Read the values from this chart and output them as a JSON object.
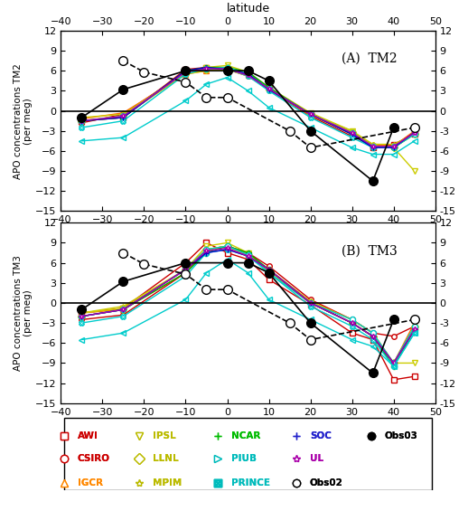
{
  "latitudes": [
    -35,
    -25,
    -20,
    -10,
    -5,
    0,
    5,
    10,
    20,
    25,
    30,
    35,
    40,
    45
  ],
  "xlim": [
    -40,
    50
  ],
  "ylim": [
    -15,
    12
  ],
  "yticks": [
    -15,
    -12,
    -9,
    -6,
    -3,
    0,
    3,
    6,
    9,
    12
  ],
  "xticks": [
    -40,
    -30,
    -20,
    -10,
    0,
    10,
    20,
    30,
    40,
    50
  ],
  "obs02": {
    "lat": [
      -25,
      -20,
      -10,
      -5,
      0,
      15,
      20,
      35,
      45
    ],
    "TM2": [
      7.5,
      5.8,
      4.3,
      2.0,
      2.0,
      -3.0,
      -5.5,
      null,
      -2.5
    ],
    "TM3": [
      7.5,
      5.8,
      4.3,
      2.0,
      2.0,
      -3.0,
      -5.5,
      null,
      -2.5
    ],
    "color": "#000000",
    "marker": "o",
    "linestyle": "--",
    "markersize": 7,
    "mfc": "white",
    "label": "Obs02"
  },
  "obs03": {
    "lat": [
      -35,
      -25,
      -10,
      0,
      5,
      10,
      20,
      35,
      40
    ],
    "TM2": [
      -1.0,
      3.2,
      6.0,
      6.0,
      6.0,
      4.5,
      -3.0,
      -10.5,
      -2.5
    ],
    "TM3": [
      -1.0,
      3.2,
      6.0,
      6.0,
      6.0,
      4.5,
      -3.0,
      -10.5,
      -2.5
    ],
    "color": "#000000",
    "marker": "o",
    "linestyle": "-",
    "markersize": 7,
    "mfc": "#000000",
    "label": "Obs03"
  },
  "models_TM2": {
    "AWI": {
      "lat": [
        -35,
        -25,
        -10,
        -5,
        0,
        5,
        10,
        20,
        30,
        35,
        40,
        45
      ],
      "vals": [
        -1.5,
        -1.0,
        6.2,
        6.5,
        6.2,
        5.5,
        3.5,
        -0.5,
        -3.5,
        -5.5,
        -5.0,
        -3.5
      ],
      "color": "#cc0000",
      "marker": "s",
      "mfc": "white"
    },
    "CSIRO": {
      "lat": [
        -35,
        -25,
        -10,
        -5,
        0,
        5,
        10,
        20,
        30,
        35,
        40,
        45
      ],
      "vals": [
        -1.8,
        -0.5,
        5.8,
        6.3,
        6.2,
        5.2,
        3.2,
        -0.8,
        -3.8,
        -5.2,
        -5.2,
        -3.2
      ],
      "color": "#cc0000",
      "marker": "o",
      "mfc": "white"
    },
    "IGCR": {
      "lat": [
        -35,
        -25,
        -10,
        -5,
        0,
        5,
        10,
        20,
        30,
        35,
        40,
        45
      ],
      "vals": [
        -1.2,
        -0.3,
        5.5,
        6.0,
        6.3,
        5.3,
        3.3,
        -0.7,
        -3.3,
        -5.0,
        -5.3,
        -3.0
      ],
      "color": "#ff6600",
      "marker": "^",
      "mfc": "white"
    },
    "IPSL": {
      "lat": [
        -35,
        -25,
        -10,
        -5,
        0,
        5,
        10,
        20,
        30,
        35,
        40,
        45
      ],
      "vals": [
        -1.5,
        -0.8,
        5.8,
        6.5,
        6.8,
        5.8,
        3.5,
        -0.3,
        -3.0,
        -5.5,
        -5.5,
        -9.0
      ],
      "color": "#cccc00",
      "marker": "v",
      "mfc": "white"
    },
    "LLNL": {
      "lat": [
        -35,
        -25,
        -10,
        -5,
        0,
        5,
        10,
        20,
        30,
        35,
        40,
        45
      ],
      "vals": [
        -1.5,
        -0.8,
        5.5,
        6.2,
        6.5,
        5.5,
        3.2,
        -0.5,
        -3.2,
        -5.2,
        -5.5,
        -3.5
      ],
      "color": "#cccc00",
      "marker": "D",
      "mfc": "white"
    },
    "MPIM": {
      "lat": [
        -35,
        -25,
        -10,
        -5,
        0,
        5,
        10,
        20,
        30,
        35,
        40,
        45
      ],
      "vals": [
        -1.0,
        -0.5,
        5.5,
        6.0,
        6.2,
        5.2,
        3.5,
        -0.5,
        -3.0,
        -5.0,
        -5.0,
        -3.5
      ],
      "color": "#cccc00",
      "marker": "*",
      "mfc": "white"
    },
    "NCAR": {
      "lat": [
        -35,
        -25,
        -10,
        -5,
        0,
        5,
        10,
        20,
        30,
        35,
        40,
        45
      ],
      "vals": [
        -1.5,
        -1.0,
        6.0,
        6.5,
        6.5,
        5.8,
        3.5,
        -0.5,
        -3.5,
        -5.5,
        -5.5,
        -3.5
      ],
      "color": "#00aa00",
      "marker": "P",
      "mfc": "white"
    },
    "PIUB": {
      "lat": [
        -35,
        -25,
        -10,
        -5,
        0,
        5,
        10,
        20,
        30,
        35,
        40,
        45
      ],
      "vals": [
        -2.5,
        -1.5,
        5.5,
        6.3,
        6.3,
        5.2,
        3.0,
        -1.0,
        -4.0,
        -5.5,
        -5.5,
        -3.5
      ],
      "color": "#00cccc",
      "marker": "X",
      "mfc": "white"
    },
    "PRINCE": {
      "lat": [
        -35,
        -25,
        -10,
        -5,
        0,
        5,
        10,
        20,
        30,
        35,
        40,
        45
      ],
      "vals": [
        -1.5,
        -0.8,
        5.8,
        6.3,
        6.5,
        5.5,
        3.3,
        -0.5,
        -3.3,
        -5.3,
        -5.3,
        -3.5
      ],
      "color": "#00cccc",
      "marker": "8",
      "mfc": "white"
    },
    "SOC": {
      "lat": [
        -35,
        -25,
        -10,
        -5,
        0,
        5,
        10,
        20,
        30,
        35,
        40,
        45
      ],
      "vals": [
        -1.5,
        -1.0,
        6.0,
        6.5,
        6.2,
        5.5,
        3.2,
        -0.5,
        -3.5,
        -5.5,
        -5.5,
        -3.2
      ],
      "color": "#0000cc",
      "marker": "+",
      "mfc": "white"
    },
    "UL": {
      "lat": [
        -35,
        -25,
        -10,
        -5,
        0,
        5,
        10,
        20,
        30,
        35,
        40,
        45
      ],
      "vals": [
        -1.5,
        -0.8,
        5.8,
        6.3,
        6.3,
        5.3,
        3.3,
        -0.5,
        -3.3,
        -5.3,
        -5.3,
        -3.3
      ],
      "color": "#aa00aa",
      "marker": "*",
      "mfc": "white"
    },
    "PIUB2": {
      "lat": [
        -35,
        -25,
        -10,
        -5,
        0,
        5,
        10,
        20,
        30,
        35,
        40,
        45
      ],
      "vals": [
        -4.5,
        -4.0,
        1.5,
        4.0,
        5.0,
        3.0,
        0.5,
        -2.5,
        -5.5,
        -6.5,
        -6.5,
        -4.5
      ],
      "color": "#00cccc",
      "marker": ">",
      "mfc": "white"
    }
  },
  "models_TM3": {
    "AWI": {
      "lat": [
        -35,
        -25,
        -10,
        -5,
        0,
        5,
        10,
        20,
        30,
        35,
        40,
        45
      ],
      "vals": [
        -1.5,
        -0.8,
        6.0,
        9.0,
        7.5,
        6.5,
        3.5,
        -0.3,
        -4.5,
        -5.5,
        -11.5,
        -11.0
      ],
      "color": "#cc0000",
      "marker": "s",
      "mfc": "white"
    },
    "CSIRO": {
      "lat": [
        -35,
        -25,
        -10,
        -5,
        0,
        5,
        10,
        20,
        30,
        35,
        40,
        45
      ],
      "vals": [
        -2.5,
        -1.8,
        4.5,
        8.0,
        8.5,
        7.5,
        5.5,
        0.5,
        -2.5,
        -4.5,
        -5.0,
        -3.5
      ],
      "color": "#cc0000",
      "marker": "o",
      "mfc": "white"
    },
    "IGCR": {
      "lat": [
        -35,
        -25,
        -10,
        -5,
        0,
        5,
        10,
        20,
        30,
        35,
        40,
        45
      ],
      "vals": [
        -1.5,
        -1.0,
        4.5,
        8.0,
        8.5,
        7.2,
        5.0,
        0.2,
        -2.5,
        -4.5,
        -9.0,
        -3.0
      ],
      "color": "#ff6600",
      "marker": "^",
      "mfc": "white"
    },
    "IPSL": {
      "lat": [
        -35,
        -25,
        -10,
        -5,
        0,
        5,
        10,
        20,
        30,
        35,
        40,
        45
      ],
      "vals": [
        -1.5,
        -0.8,
        5.0,
        8.5,
        9.0,
        7.5,
        4.5,
        0.0,
        -3.0,
        -5.0,
        -9.0,
        -9.0
      ],
      "color": "#cccc00",
      "marker": "v",
      "mfc": "white"
    },
    "LLNL": {
      "lat": [
        -35,
        -25,
        -10,
        -5,
        0,
        5,
        10,
        20,
        30,
        35,
        40,
        45
      ],
      "vals": [
        -2.0,
        -1.0,
        5.0,
        8.0,
        8.5,
        7.2,
        4.8,
        0.0,
        -3.0,
        -5.0,
        -9.0,
        -3.5
      ],
      "color": "#cccc00",
      "marker": "D",
      "mfc": "white"
    },
    "MPIM": {
      "lat": [
        -35,
        -25,
        -10,
        -5,
        0,
        5,
        10,
        20,
        30,
        35,
        40,
        45
      ],
      "vals": [
        -1.5,
        -0.5,
        5.0,
        8.0,
        8.5,
        7.0,
        5.0,
        0.2,
        -2.5,
        -4.5,
        -9.0,
        -3.5
      ],
      "color": "#cccc00",
      "marker": "*",
      "mfc": "white"
    },
    "NCAR": {
      "lat": [
        -35,
        -25,
        -10,
        -5,
        0,
        5,
        10,
        20,
        30,
        35,
        40,
        45
      ],
      "vals": [
        -2.0,
        -1.0,
        4.5,
        7.5,
        8.5,
        7.5,
        5.0,
        0.0,
        -3.0,
        -5.0,
        -9.5,
        -4.0
      ],
      "color": "#00aa00",
      "marker": "P",
      "mfc": "white"
    },
    "PIUB": {
      "lat": [
        -35,
        -25,
        -10,
        -5,
        0,
        5,
        10,
        20,
        30,
        35,
        40,
        45
      ],
      "vals": [
        -3.0,
        -2.0,
        4.0,
        7.5,
        8.0,
        7.0,
        4.5,
        -0.5,
        -3.5,
        -5.5,
        -9.5,
        -4.5
      ],
      "color": "#00cccc",
      "marker": "X",
      "mfc": "white"
    },
    "PRINCE": {
      "lat": [
        -35,
        -25,
        -10,
        -5,
        0,
        5,
        10,
        20,
        30,
        35,
        40,
        45
      ],
      "vals": [
        -2.0,
        -1.0,
        5.0,
        8.0,
        8.5,
        7.2,
        4.5,
        0.0,
        -2.5,
        -4.5,
        -9.0,
        -3.5
      ],
      "color": "#00cccc",
      "marker": "8",
      "mfc": "white"
    },
    "SOC": {
      "lat": [
        -35,
        -25,
        -10,
        -5,
        0,
        5,
        10,
        20,
        30,
        35,
        40,
        45
      ],
      "vals": [
        -2.0,
        -1.0,
        5.0,
        7.5,
        8.0,
        7.0,
        5.0,
        0.0,
        -3.0,
        -5.0,
        -9.0,
        -4.0
      ],
      "color": "#0000cc",
      "marker": "+",
      "mfc": "white"
    },
    "UL": {
      "lat": [
        -35,
        -25,
        -10,
        -5,
        0,
        5,
        10,
        20,
        30,
        35,
        40,
        45
      ],
      "vals": [
        -2.0,
        -1.0,
        5.0,
        7.8,
        8.2,
        7.0,
        5.0,
        0.0,
        -3.0,
        -5.0,
        -9.0,
        -4.0
      ],
      "color": "#aa00aa",
      "marker": "*",
      "mfc": "white"
    },
    "PIUB2": {
      "lat": [
        -35,
        -25,
        -10,
        -5,
        0,
        5,
        10,
        20,
        30,
        35,
        40,
        45
      ],
      "vals": [
        -5.5,
        -4.5,
        0.5,
        4.5,
        6.5,
        4.5,
        0.5,
        -2.5,
        -5.5,
        -6.5,
        -9.5,
        -4.5
      ],
      "color": "#00cccc",
      "marker": ">",
      "mfc": "white"
    }
  },
  "legend_entries": [
    {
      "label": "AWI",
      "color": "#cc0000",
      "marker": "s",
      "mfc": "white"
    },
    {
      "label": "IPSL",
      "color": "#cccc00",
      "marker": "v",
      "mfc": "white"
    },
    {
      "label": "NCAR",
      "color": "#00aa00",
      "marker": "P",
      "mfc": "white"
    },
    {
      "label": "SOC",
      "color": "#0000cc",
      "marker": "+",
      "mfc": "white"
    },
    {
      "label": "Obs03",
      "color": "#000000",
      "marker": "o",
      "mfc": "#000000"
    },
    {
      "label": "CSIRO",
      "color": "#cc0000",
      "marker": "o",
      "mfc": "white"
    },
    {
      "label": "LLNL",
      "color": "#cccc00",
      "marker": "D",
      "mfc": "white"
    },
    {
      "label": "PIUB",
      "color": "#00cccc",
      "marker": "X",
      "mfc": "white"
    },
    {
      "label": "UL",
      "color": "#aa00aa",
      "marker": "*",
      "mfc": "white"
    },
    {
      "label": "IGCR",
      "color": "#ff6600",
      "marker": "^",
      "mfc": "white"
    },
    {
      "label": "MPIM",
      "color": "#cccc00",
      "marker": "*",
      "mfc": "white"
    },
    {
      "label": "PRINCE",
      "color": "#00cccc",
      "marker": "8",
      "mfc": "white"
    },
    {
      "label": "Obs02",
      "color": "#000000",
      "marker": "o",
      "mfc": "white"
    }
  ],
  "title_A": "(A)  TM2",
  "title_B": "(B)  TM3",
  "ylabel_A": "APO concentrations TM2\n(per meg)",
  "ylabel_B": "APO concentrations TM3\n(per meg)",
  "xlabel": "latitude"
}
